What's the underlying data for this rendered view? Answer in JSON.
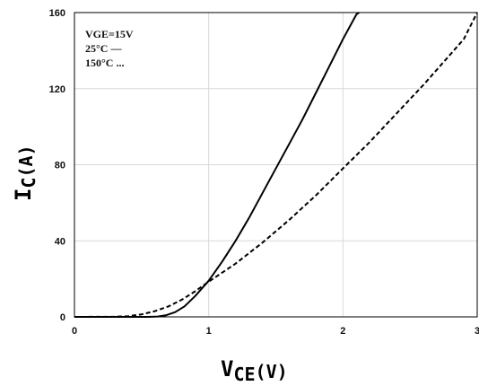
{
  "chart_data": {
    "type": "line",
    "x_axis": {
      "range": [
        0,
        3
      ],
      "tick_values": [
        0,
        1,
        2,
        3
      ],
      "tick_labels": [
        "0",
        "1",
        "2",
        "3"
      ],
      "grid": true
    },
    "y_axis": {
      "range": [
        0,
        160
      ],
      "tick_values": [
        0,
        40,
        80,
        120,
        160
      ],
      "tick_labels": [
        "0",
        "40",
        "80",
        "120",
        "160"
      ],
      "grid": true
    },
    "xlabel": {
      "main": "V",
      "sub": "CE",
      "unit": "(V)"
    },
    "ylabel": {
      "main": "I",
      "sub": "C",
      "unit": "(A)"
    },
    "legend": {
      "placement": "top-left",
      "lines": [
        "VGE=15V",
        "25°C —",
        "150°C ..."
      ]
    },
    "series": [
      {
        "style": "solid",
        "color": "#000000",
        "points": [
          [
            0,
            0
          ],
          [
            0.55,
            0
          ],
          [
            0.62,
            0.2
          ],
          [
            0.68,
            0.8
          ],
          [
            0.75,
            2.5
          ],
          [
            0.82,
            5.5
          ],
          [
            0.9,
            11
          ],
          [
            1.0,
            19
          ],
          [
            1.1,
            29
          ],
          [
            1.2,
            40
          ],
          [
            1.3,
            52
          ],
          [
            1.4,
            65
          ],
          [
            1.5,
            78
          ],
          [
            1.6,
            91
          ],
          [
            1.7,
            104
          ],
          [
            1.8,
            118
          ],
          [
            1.9,
            132
          ],
          [
            2.0,
            146
          ],
          [
            2.1,
            159
          ],
          [
            2.12,
            160
          ]
        ]
      },
      {
        "style": "dashed",
        "color": "#000000",
        "points": [
          [
            0,
            0
          ],
          [
            0.3,
            0.1
          ],
          [
            0.4,
            0.4
          ],
          [
            0.5,
            1.3
          ],
          [
            0.6,
            3
          ],
          [
            0.7,
            5.5
          ],
          [
            0.8,
            9
          ],
          [
            0.9,
            13.5
          ],
          [
            1.0,
            18.5
          ],
          [
            1.2,
            28
          ],
          [
            1.4,
            39
          ],
          [
            1.6,
            51
          ],
          [
            1.8,
            64
          ],
          [
            2.0,
            78
          ],
          [
            2.2,
            92
          ],
          [
            2.4,
            107
          ],
          [
            2.6,
            122
          ],
          [
            2.8,
            138
          ],
          [
            2.9,
            146
          ],
          [
            3.0,
            160
          ]
        ]
      }
    ]
  }
}
